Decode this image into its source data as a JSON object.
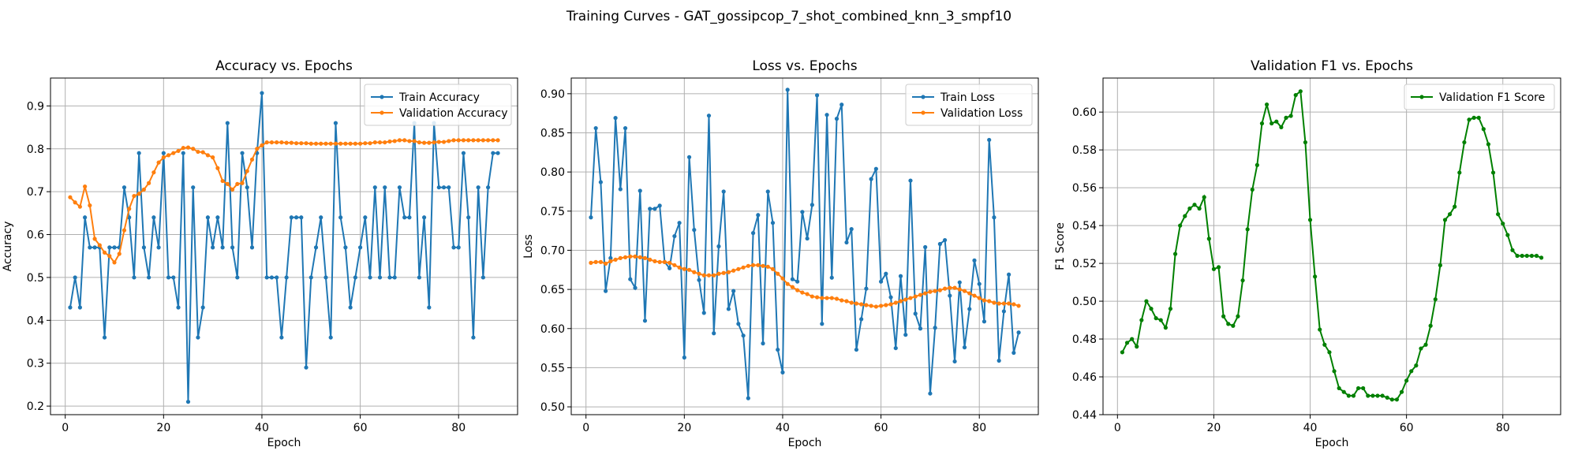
{
  "figure": {
    "suptitle": "Training Curves - GAT_gossipcop_7_shot_combined_knn_3_smpf10"
  },
  "chart_data": [
    {
      "type": "line",
      "title": "Accuracy vs. Epochs",
      "xlabel": "Epoch",
      "ylabel": "Accuracy",
      "xlim": [
        -3,
        92
      ],
      "ylim": [
        0.18,
        0.965
      ],
      "xticks": [
        0,
        20,
        40,
        60,
        80
      ],
      "yticks": [
        0.2,
        0.3,
        0.4,
        0.5,
        0.6,
        0.7,
        0.8,
        0.9
      ],
      "ytick_labels": [
        "0.2",
        "0.3",
        "0.4",
        "0.5",
        "0.6",
        "0.7",
        "0.8",
        "0.9"
      ],
      "grid": true,
      "legend": "top-right",
      "x_start": 1,
      "series": [
        {
          "name": "Train Accuracy",
          "color": "#1f77b4",
          "values": [
            0.43,
            0.5,
            0.43,
            0.64,
            0.57,
            0.57,
            0.57,
            0.36,
            0.57,
            0.57,
            0.57,
            0.71,
            0.64,
            0.5,
            0.79,
            0.57,
            0.5,
            0.64,
            0.57,
            0.79,
            0.5,
            0.5,
            0.43,
            0.79,
            0.21,
            0.71,
            0.36,
            0.43,
            0.64,
            0.57,
            0.64,
            0.57,
            0.86,
            0.57,
            0.5,
            0.79,
            0.71,
            0.57,
            0.79,
            0.93,
            0.5,
            0.5,
            0.5,
            0.36,
            0.5,
            0.64,
            0.64,
            0.64,
            0.29,
            0.5,
            0.57,
            0.64,
            0.5,
            0.36,
            0.86,
            0.64,
            0.57,
            0.43,
            0.5,
            0.57,
            0.64,
            0.5,
            0.71,
            0.5,
            0.71,
            0.5,
            0.5,
            0.71,
            0.64,
            0.64,
            0.86,
            0.5,
            0.64,
            0.43,
            0.86,
            0.71,
            0.71,
            0.71,
            0.57,
            0.57,
            0.79,
            0.64,
            0.36,
            0.71,
            0.5,
            0.71,
            0.79,
            0.79
          ]
        },
        {
          "name": "Validation Accuracy",
          "color": "#ff7f0e",
          "values": [
            0.687,
            0.675,
            0.665,
            0.712,
            0.668,
            0.59,
            0.575,
            0.558,
            0.55,
            0.535,
            0.555,
            0.61,
            0.66,
            0.69,
            0.695,
            0.705,
            0.72,
            0.745,
            0.768,
            0.78,
            0.785,
            0.79,
            0.795,
            0.802,
            0.803,
            0.8,
            0.793,
            0.792,
            0.785,
            0.78,
            0.755,
            0.725,
            0.718,
            0.705,
            0.718,
            0.72,
            0.748,
            0.775,
            0.8,
            0.808,
            0.815,
            0.815,
            0.815,
            0.815,
            0.814,
            0.814,
            0.813,
            0.813,
            0.813,
            0.812,
            0.812,
            0.812,
            0.812,
            0.812,
            0.812,
            0.812,
            0.812,
            0.812,
            0.812,
            0.812,
            0.813,
            0.813,
            0.815,
            0.815,
            0.815,
            0.817,
            0.818,
            0.82,
            0.82,
            0.818,
            0.818,
            0.815,
            0.814,
            0.814,
            0.815,
            0.816,
            0.816,
            0.818,
            0.82,
            0.82,
            0.82,
            0.82,
            0.82,
            0.82,
            0.82,
            0.82,
            0.82,
            0.82
          ]
        }
      ]
    },
    {
      "type": "line",
      "title": "Loss vs. Epochs",
      "xlabel": "Epoch",
      "ylabel": "Loss",
      "xlim": [
        -3,
        92
      ],
      "ylim": [
        0.49,
        0.92
      ],
      "xticks": [
        0,
        20,
        40,
        60,
        80
      ],
      "yticks": [
        0.5,
        0.55,
        0.6,
        0.65,
        0.7,
        0.75,
        0.8,
        0.85,
        0.9
      ],
      "ytick_labels": [
        "0.50",
        "0.55",
        "0.60",
        "0.65",
        "0.70",
        "0.75",
        "0.80",
        "0.85",
        "0.90"
      ],
      "grid": true,
      "legend": "top-right",
      "x_start": 1,
      "series": [
        {
          "name": "Train Loss",
          "color": "#1f77b4",
          "values": [
            0.742,
            0.856,
            0.787,
            0.648,
            0.69,
            0.869,
            0.778,
            0.856,
            0.663,
            0.652,
            0.776,
            0.61,
            0.753,
            0.753,
            0.757,
            0.685,
            0.677,
            0.718,
            0.735,
            0.563,
            0.819,
            0.726,
            0.662,
            0.62,
            0.872,
            0.594,
            0.705,
            0.775,
            0.625,
            0.648,
            0.606,
            0.591,
            0.511,
            0.722,
            0.745,
            0.581,
            0.775,
            0.735,
            0.573,
            0.544,
            0.905,
            0.663,
            0.66,
            0.749,
            0.715,
            0.758,
            0.898,
            0.606,
            0.873,
            0.665,
            0.868,
            0.886,
            0.71,
            0.727,
            0.573,
            0.612,
            0.651,
            0.791,
            0.804,
            0.66,
            0.67,
            0.64,
            0.575,
            0.667,
            0.592,
            0.789,
            0.619,
            0.6,
            0.704,
            0.517,
            0.601,
            0.708,
            0.713,
            0.642,
            0.558,
            0.659,
            0.576,
            0.625,
            0.687,
            0.657,
            0.609,
            0.841,
            0.742,
            0.559,
            0.622,
            0.669,
            0.569,
            0.595
          ]
        },
        {
          "name": "Validation Loss",
          "color": "#ff7f0e",
          "values": [
            0.684,
            0.685,
            0.685,
            0.683,
            0.686,
            0.688,
            0.69,
            0.691,
            0.692,
            0.692,
            0.691,
            0.69,
            0.688,
            0.686,
            0.685,
            0.685,
            0.684,
            0.681,
            0.678,
            0.676,
            0.675,
            0.672,
            0.67,
            0.668,
            0.668,
            0.668,
            0.67,
            0.671,
            0.672,
            0.674,
            0.676,
            0.678,
            0.68,
            0.681,
            0.681,
            0.68,
            0.679,
            0.676,
            0.67,
            0.664,
            0.657,
            0.653,
            0.649,
            0.646,
            0.644,
            0.641,
            0.64,
            0.639,
            0.639,
            0.639,
            0.638,
            0.636,
            0.635,
            0.633,
            0.632,
            0.631,
            0.63,
            0.629,
            0.628,
            0.629,
            0.63,
            0.631,
            0.633,
            0.635,
            0.637,
            0.639,
            0.641,
            0.643,
            0.645,
            0.647,
            0.648,
            0.649,
            0.651,
            0.652,
            0.652,
            0.65,
            0.648,
            0.645,
            0.642,
            0.639,
            0.636,
            0.635,
            0.633,
            0.632,
            0.632,
            0.632,
            0.631,
            0.629
          ]
        }
      ]
    },
    {
      "type": "line",
      "title": "Validation F1 vs. Epochs",
      "xlabel": "Epoch",
      "ylabel": "F1 Score",
      "xlim": [
        -3,
        92
      ],
      "ylim": [
        0.44,
        0.618
      ],
      "xticks": [
        0,
        20,
        40,
        60,
        80
      ],
      "yticks": [
        0.44,
        0.46,
        0.48,
        0.5,
        0.52,
        0.54,
        0.56,
        0.58,
        0.6
      ],
      "ytick_labels": [
        "0.44",
        "0.46",
        "0.48",
        "0.50",
        "0.52",
        "0.54",
        "0.56",
        "0.58",
        "0.60"
      ],
      "grid": true,
      "legend": "top-right",
      "x_start": 1,
      "series": [
        {
          "name": "Validation F1 Score",
          "color": "#008000",
          "values": [
            0.473,
            0.478,
            0.48,
            0.476,
            0.49,
            0.5,
            0.496,
            0.491,
            0.49,
            0.486,
            0.496,
            0.525,
            0.54,
            0.545,
            0.549,
            0.551,
            0.549,
            0.555,
            0.533,
            0.517,
            0.518,
            0.492,
            0.488,
            0.487,
            0.492,
            0.511,
            0.538,
            0.559,
            0.572,
            0.594,
            0.604,
            0.594,
            0.595,
            0.592,
            0.597,
            0.598,
            0.609,
            0.611,
            0.584,
            0.543,
            0.513,
            0.485,
            0.477,
            0.473,
            0.463,
            0.454,
            0.452,
            0.45,
            0.45,
            0.454,
            0.454,
            0.45,
            0.45,
            0.45,
            0.45,
            0.449,
            0.448,
            0.448,
            0.452,
            0.458,
            0.463,
            0.466,
            0.475,
            0.477,
            0.487,
            0.501,
            0.519,
            0.543,
            0.546,
            0.55,
            0.568,
            0.584,
            0.596,
            0.597,
            0.597,
            0.591,
            0.583,
            0.568,
            0.546,
            0.541,
            0.535,
            0.527,
            0.524,
            0.524,
            0.524,
            0.524,
            0.524,
            0.523
          ]
        }
      ]
    }
  ]
}
